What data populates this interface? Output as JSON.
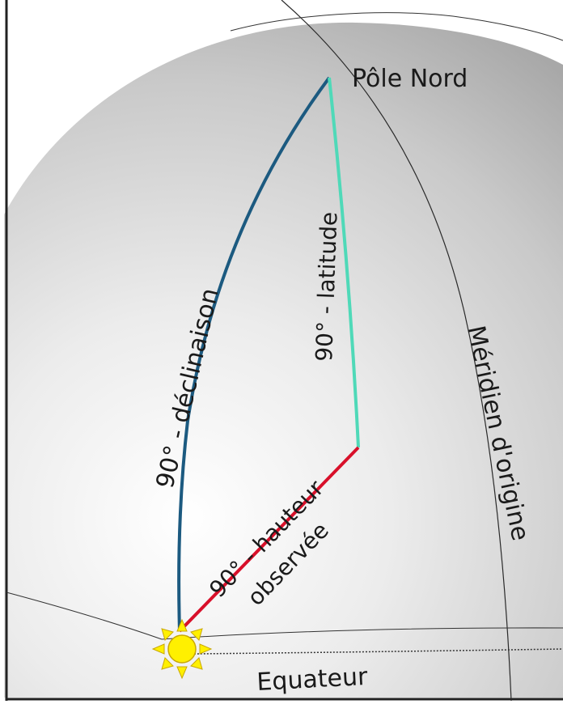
{
  "labels": {
    "pole": "Pôle Nord",
    "meridian": "Méridien d'origine",
    "equator": "Equateur",
    "arc_declinaison": "90° - déclinaison",
    "arc_latitude": "90° - latitude",
    "arc_hauteur_line1": "90° - hauteur",
    "arc_hauteur_line2": "observée"
  },
  "colors": {
    "declinaison_arc": "#1c5a80",
    "latitude_arc": "#4fd9b8",
    "hauteur_arc": "#d8102a",
    "sun_fill": "#fff000",
    "sun_stroke": "#c9a800",
    "grid_lines": "#333333"
  },
  "icons": {
    "sun": "sun-icon"
  }
}
